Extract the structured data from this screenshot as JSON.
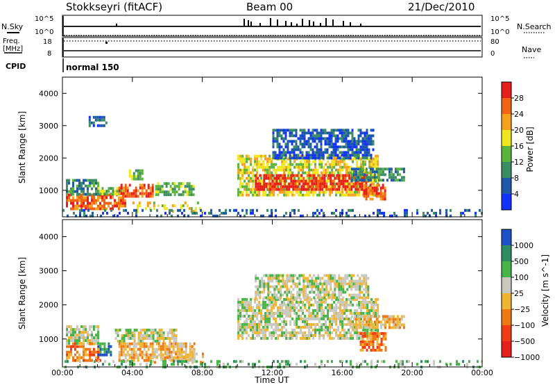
{
  "header": {
    "station": "Stokkseyri (fitACF)",
    "beam": "Beam 00",
    "date": "21/Dec/2010"
  },
  "top_panels": {
    "nsky_label": "N.Sky",
    "nsky_tick_top": "10^5",
    "nsky_tick_bottom": "10^0",
    "nsearch_tick_top": "10^5",
    "nsearch_tick_bottom": "10^0",
    "nsearch_label": "N.Search",
    "freq_label": "Freq.",
    "freq_unit": "[MHz]",
    "freq_tick_top": "18",
    "freq_tick_bottom": "8",
    "nave_tick_top": "80",
    "nave_tick_bottom": "0",
    "nave_label": "Nave",
    "cpid_label": "CPID",
    "cpid_value": "normal 150"
  },
  "chart_data": [
    {
      "type": "heatmap",
      "name_key": "power",
      "xlabel": "Time UT",
      "ylabel": "Slant Range [km]",
      "xlim": [
        0,
        24
      ],
      "ylim": [
        180,
        4500
      ],
      "x_ticks": [
        "00:00",
        "04:00",
        "08:00",
        "12:00",
        "16:00",
        "20:00",
        "00:00"
      ],
      "y_ticks": [
        1000,
        2000,
        3000,
        4000
      ],
      "colorbar": {
        "label": "Power [dB]",
        "ticks": [
          "4",
          "8",
          "12",
          "16",
          "20",
          "24",
          "28"
        ],
        "colors": [
          "#1432ff",
          "#1e5aa8",
          "#3c8c64",
          "#5ab43c",
          "#f0e61e",
          "#f5a01e",
          "#f06414",
          "#e61e1e"
        ]
      },
      "regions": [
        {
          "t0": 0.2,
          "t1": 3.6,
          "r0": 420,
          "r1": 900,
          "level": 6
        },
        {
          "t0": 0.2,
          "t1": 2.0,
          "r0": 900,
          "r1": 1350,
          "level": 2
        },
        {
          "t0": 2.0,
          "t1": 3.6,
          "r0": 850,
          "r1": 1100,
          "level": 3
        },
        {
          "t0": 3.2,
          "t1": 5.2,
          "r0": 850,
          "r1": 1200,
          "level": 6
        },
        {
          "t0": 3.8,
          "t1": 4.6,
          "r0": 1350,
          "r1": 1650,
          "level": 3
        },
        {
          "t0": 5.3,
          "t1": 7.5,
          "r0": 900,
          "r1": 1250,
          "level": 3
        },
        {
          "t0": 4.0,
          "t1": 8.0,
          "r0": 350,
          "r1": 650,
          "level": 4
        },
        {
          "t0": 1.5,
          "t1": 2.5,
          "r0": 3000,
          "r1": 3300,
          "level": 1
        },
        {
          "t0": 10.0,
          "t1": 18.0,
          "r0": 850,
          "r1": 2100,
          "level": 4
        },
        {
          "t0": 11.0,
          "t1": 17.5,
          "r0": 1000,
          "r1": 1500,
          "level": 7
        },
        {
          "t0": 12.0,
          "t1": 17.8,
          "r0": 2000,
          "r1": 2900,
          "level": 1
        },
        {
          "t0": 16.5,
          "t1": 19.5,
          "r0": 1300,
          "r1": 1700,
          "level": 2
        },
        {
          "t0": 17.2,
          "t1": 18.5,
          "r0": 700,
          "r1": 1200,
          "level": 6
        },
        {
          "t0": 0.0,
          "t1": 24.0,
          "r0": 180,
          "r1": 420,
          "level": 1
        }
      ]
    },
    {
      "type": "heatmap",
      "name_key": "velocity",
      "xlabel": "Time UT",
      "ylabel": "Slant Range [km]",
      "xlim": [
        0,
        24
      ],
      "ylim": [
        180,
        4500
      ],
      "x_ticks": [
        "00:00",
        "04:00",
        "08:00",
        "12:00",
        "16:00",
        "20:00",
        "00:00"
      ],
      "y_ticks": [
        1000,
        2000,
        3000,
        4000
      ],
      "colorbar": {
        "label": "Velocity [m s^-1]",
        "ticks": [
          "1000",
          "500",
          "100",
          "25",
          "−25",
          "−100",
          "−500",
          "−1000"
        ],
        "colors": [
          "#1e50c8",
          "#2d8c64",
          "#46b446",
          "#c8c8c0",
          "#f0b432",
          "#f07814",
          "#f03c14",
          "#e61e1e"
        ]
      },
      "regions": [
        {
          "t0": 0.2,
          "t1": 2.0,
          "r0": 900,
          "r1": 1400,
          "level": 3
        },
        {
          "t0": 0.2,
          "t1": 2.2,
          "r0": 400,
          "r1": 900,
          "level": 5
        },
        {
          "t0": 2.0,
          "t1": 2.8,
          "r0": 500,
          "r1": 900,
          "level": 1
        },
        {
          "t0": 3.0,
          "t1": 6.5,
          "r0": 950,
          "r1": 1300,
          "level": 3
        },
        {
          "t0": 3.2,
          "t1": 7.5,
          "r0": 400,
          "r1": 900,
          "level": 4
        },
        {
          "t0": 5.0,
          "t1": 8.0,
          "r0": 350,
          "r1": 600,
          "level": 4
        },
        {
          "t0": 10.0,
          "t1": 18.0,
          "r0": 1000,
          "r1": 2200,
          "level": 3
        },
        {
          "t0": 11.0,
          "t1": 17.5,
          "r0": 2200,
          "r1": 2900,
          "level": 3
        },
        {
          "t0": 16.5,
          "t1": 19.5,
          "r0": 1300,
          "r1": 1700,
          "level": 4
        },
        {
          "t0": 17.0,
          "t1": 18.5,
          "r0": 700,
          "r1": 1200,
          "level": 5
        },
        {
          "t0": 0.0,
          "t1": 24.0,
          "r0": 180,
          "r1": 380,
          "level": 2
        }
      ]
    }
  ]
}
